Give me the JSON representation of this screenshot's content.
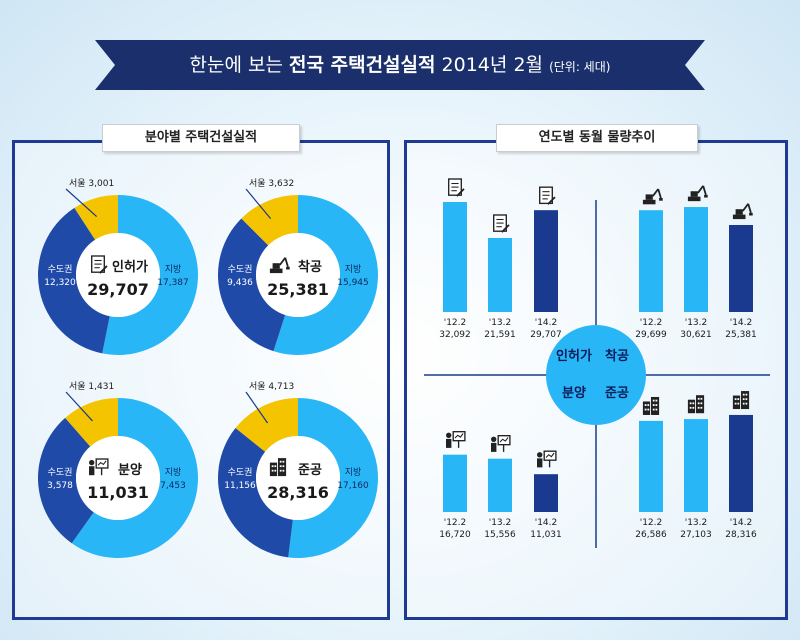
{
  "header": {
    "prefix": "한눈에 보는",
    "title": "전국 주택건설실적",
    "year": "2014년",
    "month": "2월",
    "unit": "(단위: 세대)"
  },
  "left_panel": {
    "title": "분야별 주택건설실적"
  },
  "right_panel": {
    "title": "연도별 동월 물량추이"
  },
  "colors": {
    "seoul": "#f5c400",
    "metro": "#1f4aa8",
    "local": "#29b6f6",
    "dark": "#1a3a8f",
    "banner": "#1a2f6b"
  },
  "chart_data": [
    {
      "type": "pie",
      "title": "인허가",
      "total": "29,707",
      "icon": "document-icon",
      "slices": [
        {
          "name": "지방",
          "label": "17,387",
          "value": 17387
        },
        {
          "name": "수도권",
          "label": "12,320",
          "value": 12320
        },
        {
          "name": "서울",
          "label": "3,001",
          "value": 3001
        }
      ]
    },
    {
      "type": "pie",
      "title": "착공",
      "total": "25,381",
      "icon": "excavator-icon",
      "slices": [
        {
          "name": "지방",
          "label": "15,945",
          "value": 15945
        },
        {
          "name": "수도권",
          "label": "9,436",
          "value": 9436
        },
        {
          "name": "서울",
          "label": "3,632",
          "value": 3632
        }
      ]
    },
    {
      "type": "pie",
      "title": "분양",
      "total": "11,031",
      "icon": "presenter-icon",
      "slices": [
        {
          "name": "지방",
          "label": "7,453",
          "value": 7453
        },
        {
          "name": "수도권",
          "label": "3,578",
          "value": 3578
        },
        {
          "name": "서울",
          "label": "1,431",
          "value": 1431
        }
      ]
    },
    {
      "type": "pie",
      "title": "준공",
      "total": "28,316",
      "icon": "building-icon",
      "slices": [
        {
          "name": "지방",
          "label": "17,160",
          "value": 17160
        },
        {
          "name": "수도권",
          "label": "11,156",
          "value": 11156
        },
        {
          "name": "서울",
          "label": "4,713",
          "value": 4713
        }
      ]
    },
    {
      "type": "bar",
      "title": "인허가",
      "categories": [
        "'12.2",
        "'13.2",
        "'14.2"
      ],
      "labels": [
        "32,092",
        "21,591",
        "29,707"
      ],
      "values": [
        32092,
        21591,
        29707
      ],
      "icon": "document-icon"
    },
    {
      "type": "bar",
      "title": "착공",
      "categories": [
        "'12.2",
        "'13.2",
        "'14.2"
      ],
      "labels": [
        "29,699",
        "30,621",
        "25,381"
      ],
      "values": [
        29699,
        30621,
        25381
      ],
      "icon": "excavator-icon"
    },
    {
      "type": "bar",
      "title": "분양",
      "categories": [
        "'12.2",
        "'13.2",
        "'14.2"
      ],
      "labels": [
        "16,720",
        "15,556",
        "11,031"
      ],
      "values": [
        16720,
        15556,
        11031
      ],
      "icon": "presenter-icon"
    },
    {
      "type": "bar",
      "title": "준공",
      "categories": [
        "'12.2",
        "'13.2",
        "'14.2"
      ],
      "labels": [
        "26,586",
        "27,103",
        "28,316"
      ],
      "values": [
        26586,
        27103,
        28316
      ],
      "icon": "building-icon"
    }
  ]
}
